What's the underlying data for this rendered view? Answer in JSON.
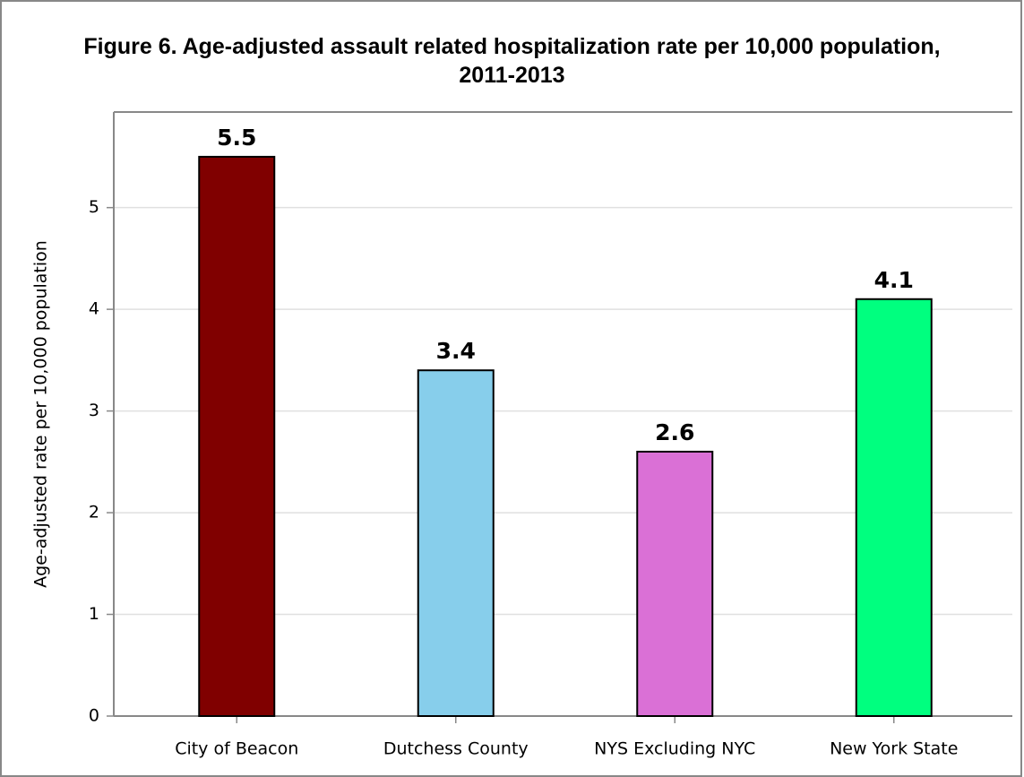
{
  "chart_data": {
    "type": "bar",
    "title": "Figure 6. Age-adjusted assault related hospitalization rate per 10,000 population, 2011-2013",
    "y_label": "Age-adjusted rate per 10,000 population",
    "categories": [
      "City of Beacon",
      "Dutchess County",
      "NYS Excluding NYC",
      "New York State"
    ],
    "values": [
      5.5,
      3.4,
      2.6,
      4.1
    ],
    "colors": [
      "#800000",
      "#87ceeb",
      "#da70d6",
      "#00ff7f"
    ],
    "ylim": [
      0,
      5.94
    ],
    "yticks": [
      0,
      1,
      2,
      3,
      4,
      5
    ],
    "grid": true
  }
}
